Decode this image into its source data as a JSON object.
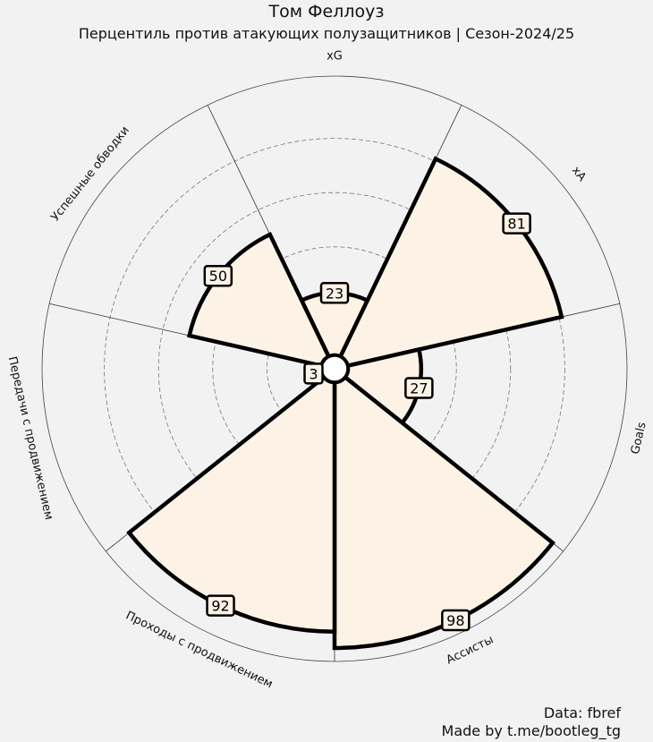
{
  "header": {
    "title": "Том Феллоуз",
    "subtitle": "Перцентиль против атакующих полузащитников | Сезон-2024/25"
  },
  "chart_data": {
    "type": "radar",
    "title": "Том Феллоуз",
    "subtitle": "Перцентиль против атакующих полузащитников | Сезон-2024/25",
    "categories": [
      "xG",
      "xA",
      "Goals",
      "Ассисты",
      "Проходы с продвижением",
      "Передачи с продвижением",
      "Успешные обводки"
    ],
    "values": [
      23,
      81,
      27,
      98,
      92,
      3,
      50
    ],
    "rlim": [
      0,
      100
    ],
    "grid": true,
    "colors": {
      "fill": "#fcf3e6",
      "edge": "#000000",
      "background": "#f2f2f2"
    }
  },
  "footer": {
    "source": "Data: fbref",
    "credit": "Made by t.me/bootleg_tg"
  }
}
